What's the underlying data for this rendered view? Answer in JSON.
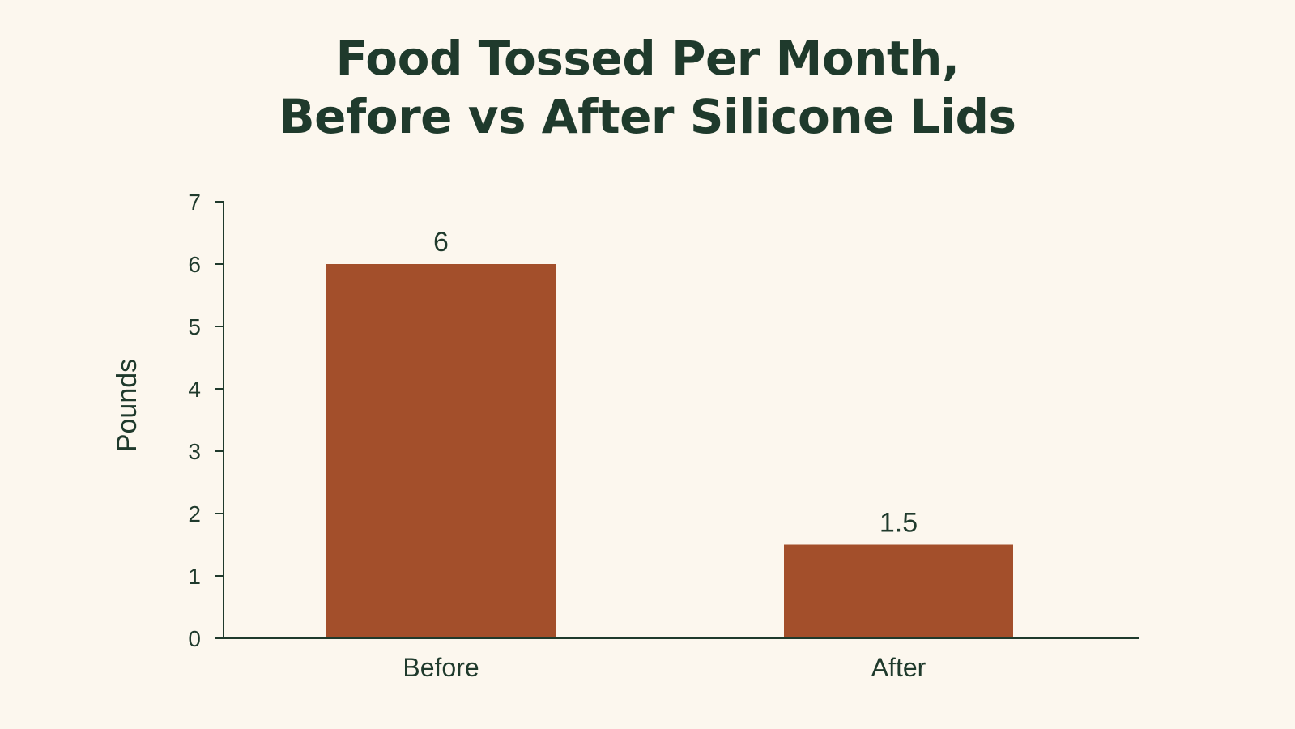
{
  "chart_data": {
    "type": "bar",
    "title_lines": [
      "Food Tossed Per Month,",
      "Before vs After Silicone Lids"
    ],
    "categories": [
      "Before",
      "After"
    ],
    "values": [
      6,
      1.5
    ],
    "data_labels": [
      "6",
      "1.5"
    ],
    "xlabel": "",
    "ylabel": "Pounds",
    "ylim": [
      0,
      7
    ],
    "yticks": [
      0,
      1,
      2,
      3,
      4,
      5,
      6,
      7
    ],
    "grid": false,
    "legend": "none",
    "bar_color": "#a34f2b",
    "axis_color": "#1f3a2c",
    "background_color": "#fcf7ee"
  }
}
